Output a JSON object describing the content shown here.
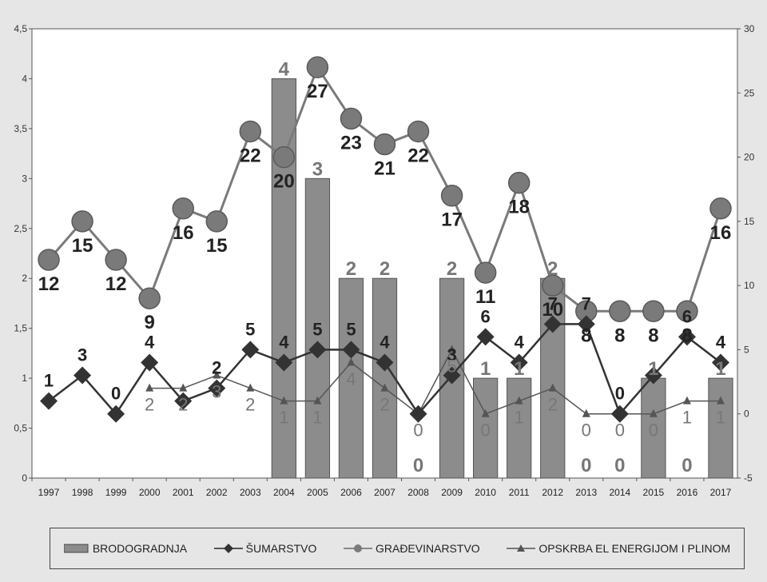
{
  "chart_data": {
    "type": "bar+line",
    "categories": [
      "1997",
      "1998",
      "1999",
      "2000",
      "2001",
      "2002",
      "2003",
      "2004",
      "2005",
      "2006",
      "2007",
      "2008",
      "2009",
      "2010",
      "2011",
      "2012",
      "2013",
      "2014",
      "2015",
      "2016",
      "2017"
    ],
    "left_axis": {
      "ylim": [
        0,
        4.5
      ],
      "ticks": [
        "0",
        "0,5",
        "1",
        "1,5",
        "2",
        "2,5",
        "3",
        "3,5",
        "4",
        "4,5"
      ]
    },
    "right_axis": {
      "ylim": [
        -5,
        30
      ],
      "ticks": [
        "-5",
        "0",
        "5",
        "10",
        "15",
        "20",
        "25",
        "30"
      ]
    },
    "series": [
      {
        "name": "BRODOGRADNJA",
        "type": "bar",
        "axis": "left",
        "values": [
          0,
          0,
          0,
          0,
          0,
          0,
          0,
          4,
          3,
          2,
          2,
          0,
          2,
          1,
          1,
          2,
          0,
          0,
          1,
          0,
          1
        ],
        "labels": [
          "",
          "",
          "",
          "",
          "",
          "",
          "",
          "4",
          "3",
          "2",
          "2",
          "0",
          "2",
          "1",
          "1",
          "2",
          "0",
          "0",
          "1",
          "0",
          "1"
        ],
        "color": "#8c8c8c"
      },
      {
        "name": "ŠUMARSTVO",
        "type": "line",
        "axis": "right",
        "marker": "diamond",
        "values": [
          1,
          3,
          0,
          4,
          1,
          2,
          5,
          4,
          5,
          5,
          4,
          0,
          3,
          6,
          4,
          7,
          7,
          0,
          3,
          6,
          4
        ],
        "labels": [
          "1",
          "3",
          "0",
          "4",
          "",
          "2",
          "5",
          "4",
          "5",
          "5",
          "4",
          "",
          "3",
          "6",
          "4",
          "7",
          "7",
          "0",
          "",
          "6",
          "4"
        ],
        "color": "#333333"
      },
      {
        "name": "GRAĐEVINARSTVO",
        "type": "line",
        "axis": "right",
        "marker": "circle",
        "values": [
          12,
          15,
          12,
          9,
          16,
          15,
          22,
          20,
          27,
          23,
          21,
          22,
          17,
          11,
          18,
          10,
          8,
          8,
          8,
          8,
          16
        ],
        "labels": [
          "12",
          "15",
          "12",
          "9",
          "16",
          "15",
          "22",
          "20",
          "27",
          "23",
          "21",
          "22",
          "17",
          "11",
          "18",
          "10",
          "8",
          "8",
          "8",
          "8",
          "16"
        ],
        "color": "#7a7a7a"
      },
      {
        "name": "OPSKRBA EL ENERGIJOM I PLINOM",
        "type": "line",
        "axis": "right",
        "marker": "triangle",
        "values": [
          null,
          null,
          null,
          2,
          2,
          3,
          2,
          1,
          1,
          4,
          2,
          0,
          5,
          0,
          1,
          2,
          0,
          0,
          0,
          1,
          1
        ],
        "labels": [
          "",
          "",
          "",
          "2",
          "2",
          "3",
          "2",
          "1",
          "1",
          "4",
          "2",
          "0",
          "5",
          "0",
          "1",
          "2",
          "0",
          "0",
          "0",
          "1",
          "1"
        ],
        "color": "#555555"
      }
    ],
    "legend_position": "bottom",
    "grid": false
  }
}
